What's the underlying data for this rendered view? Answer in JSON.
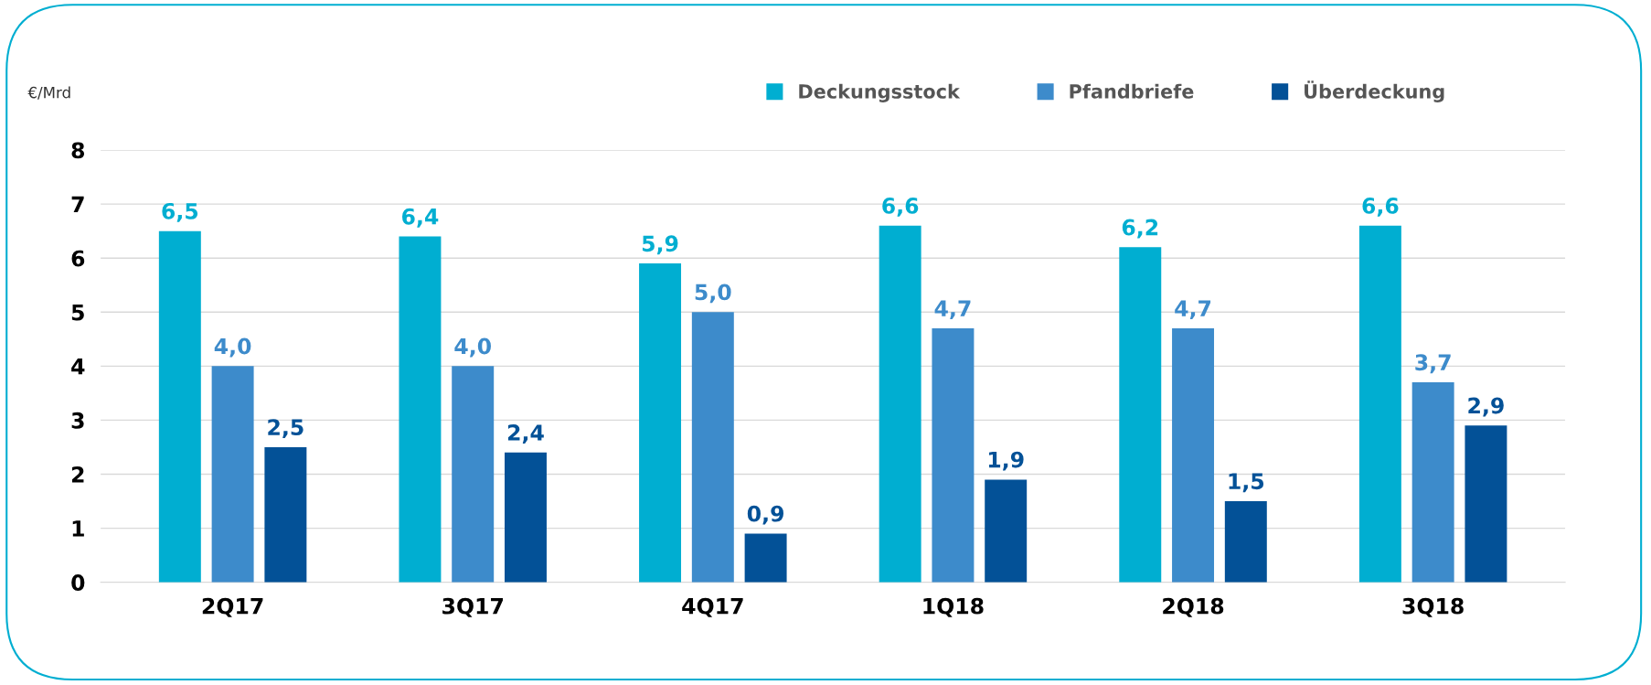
{
  "chart_data": {
    "type": "bar",
    "ylabel": "€/Mrd",
    "categories": [
      "2Q17",
      "3Q17",
      "4Q17",
      "1Q18",
      "2Q18",
      "3Q18"
    ],
    "series": [
      {
        "name": "Deckungsstock",
        "color": "#00aed1",
        "values": [
          6.5,
          6.4,
          5.9,
          6.6,
          6.2,
          6.6
        ],
        "value_labels": [
          "6,5",
          "6,4",
          "5,9",
          "6,6",
          "6,2",
          "6,6"
        ]
      },
      {
        "name": "Pfandbriefe",
        "color": "#3d8bcb",
        "values": [
          4.0,
          4.0,
          5.0,
          4.7,
          4.7,
          3.7
        ],
        "value_labels": [
          "4,0",
          "4,0",
          "5,0",
          "4,7",
          "4,7",
          "3,7"
        ]
      },
      {
        "name": "Überdeckung",
        "color": "#035197",
        "values": [
          2.5,
          2.4,
          0.9,
          1.9,
          1.5,
          2.9
        ],
        "value_labels": [
          "2,5",
          "2,4",
          "0,9",
          "1,9",
          "1,5",
          "2,9"
        ]
      }
    ],
    "ylim": [
      0,
      8
    ],
    "yticks": [
      0,
      1,
      2,
      3,
      4,
      5,
      6,
      7,
      8
    ],
    "grid": "y",
    "legend": "top right"
  }
}
